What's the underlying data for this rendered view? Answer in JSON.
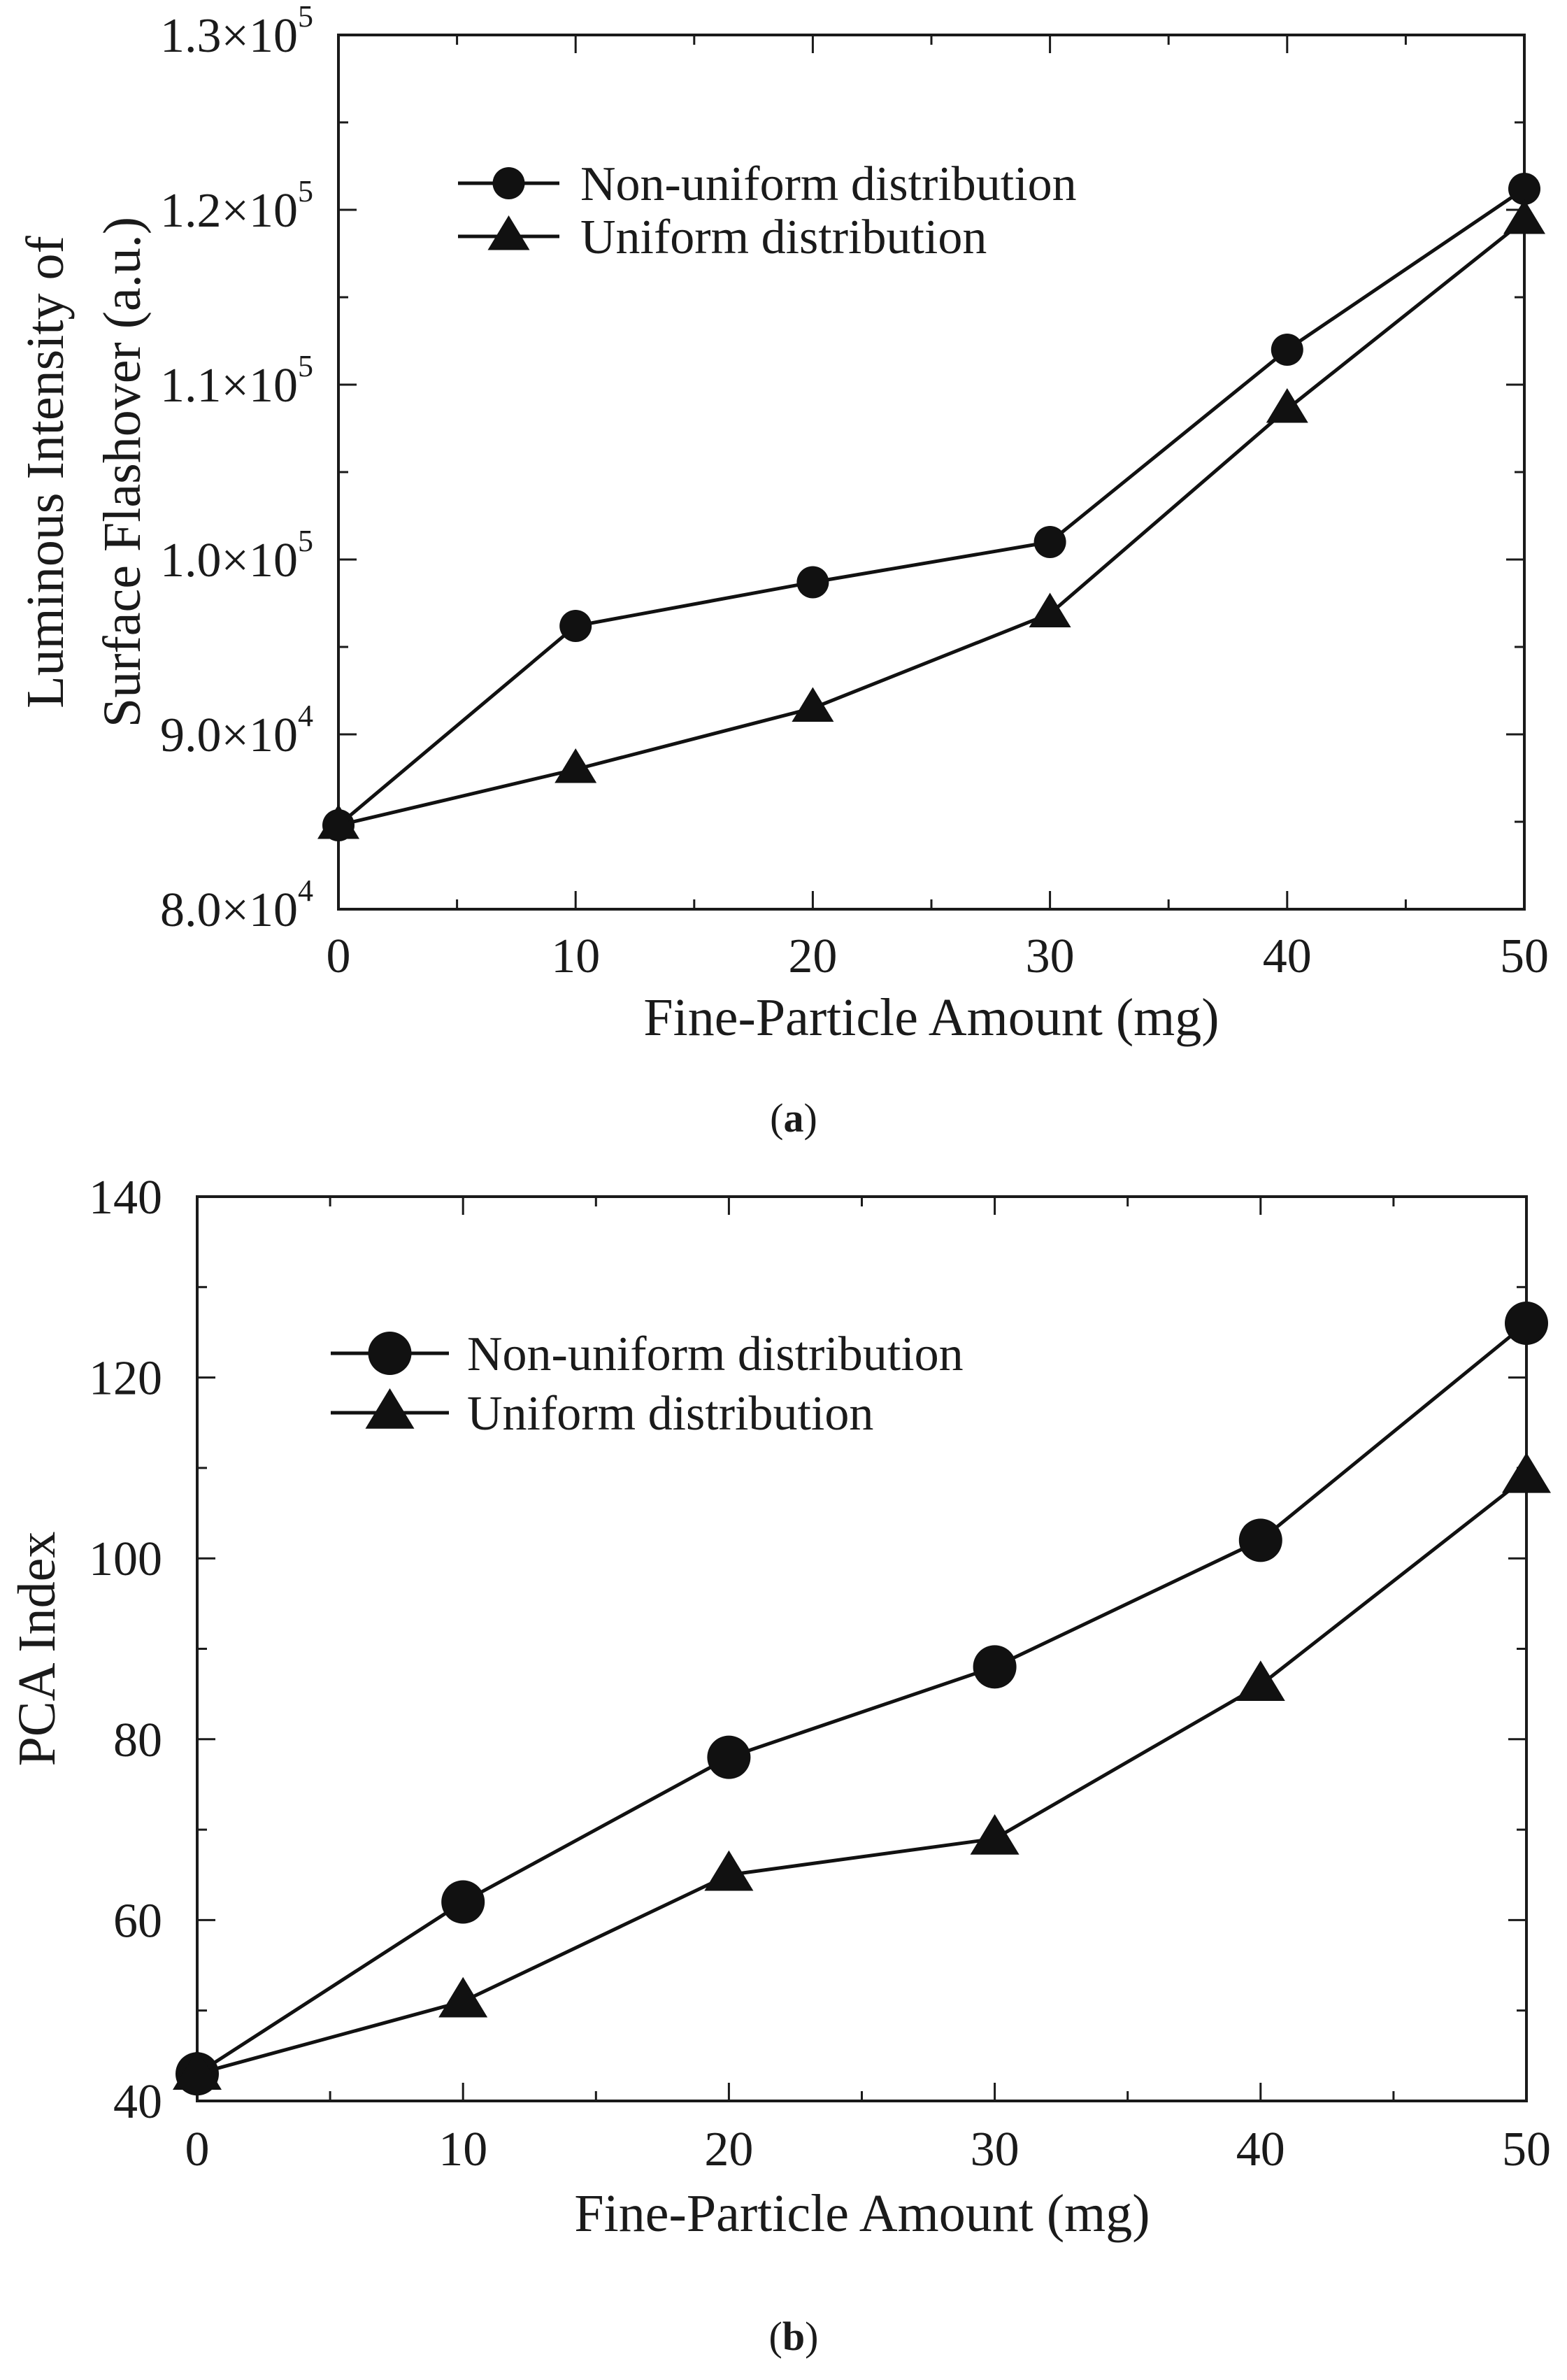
{
  "chart_data": [
    {
      "id": "a",
      "type": "line",
      "caption": {
        "open": "(",
        "letter": "a",
        "close": ")"
      },
      "xlabel": "Fine-Particle Amount (mg)",
      "ylabel_lines": [
        "Luminous Intensity of",
        "Surface Flashover (a.u.)"
      ],
      "x": [
        0,
        10,
        20,
        30,
        40,
        50
      ],
      "xlim": [
        0,
        50
      ],
      "ylim": [
        80000,
        130000
      ],
      "x_ticks": [
        0,
        10,
        20,
        30,
        40,
        50
      ],
      "x_tick_labels": [
        "0",
        "10",
        "20",
        "30",
        "40",
        "50"
      ],
      "y_ticks": [
        80000,
        90000,
        100000,
        110000,
        120000,
        130000
      ],
      "y_tick_labels": [
        {
          "mantissa": "8.0×10",
          "exponent": "4"
        },
        {
          "mantissa": "9.0×10",
          "exponent": "4"
        },
        {
          "mantissa": "1.0×10",
          "exponent": "5"
        },
        {
          "mantissa": "1.1×10",
          "exponent": "5"
        },
        {
          "mantissa": "1.2×10",
          "exponent": "5"
        },
        {
          "mantissa": "1.3×10",
          "exponent": "5"
        }
      ],
      "legend_position": "top-left",
      "series": [
        {
          "name": "Non-uniform distribution",
          "marker": "circle",
          "values": [
            84800,
            96200,
            98700,
            101000,
            112000,
            121200
          ]
        },
        {
          "name": "Uniform distribution",
          "marker": "triangle",
          "values": [
            84800,
            88000,
            91500,
            96900,
            108600,
            119400
          ]
        }
      ]
    },
    {
      "id": "b",
      "type": "line",
      "caption": {
        "open": "(",
        "letter": "b",
        "close": ")"
      },
      "xlabel": "Fine-Particle Amount (mg)",
      "ylabel_lines": [
        "PCA Index"
      ],
      "x": [
        0,
        10,
        20,
        30,
        40,
        50
      ],
      "xlim": [
        0,
        50
      ],
      "ylim": [
        40,
        140
      ],
      "x_ticks": [
        0,
        10,
        20,
        30,
        40,
        50
      ],
      "x_tick_labels": [
        "0",
        "10",
        "20",
        "30",
        "40",
        "50"
      ],
      "y_ticks": [
        40,
        60,
        80,
        100,
        120,
        140
      ],
      "y_tick_labels": [
        {
          "mantissa": "40",
          "exponent": ""
        },
        {
          "mantissa": "60",
          "exponent": ""
        },
        {
          "mantissa": "80",
          "exponent": ""
        },
        {
          "mantissa": "100",
          "exponent": ""
        },
        {
          "mantissa": "120",
          "exponent": ""
        },
        {
          "mantissa": "140",
          "exponent": ""
        }
      ],
      "legend_position": "top-left",
      "series": [
        {
          "name": "Non-uniform distribution",
          "marker": "circle",
          "values": [
            43,
            62,
            78,
            88,
            102,
            126
          ]
        },
        {
          "name": "Uniform distribution",
          "marker": "triangle",
          "values": [
            43,
            51,
            65,
            69,
            86,
            109
          ]
        }
      ]
    }
  ]
}
